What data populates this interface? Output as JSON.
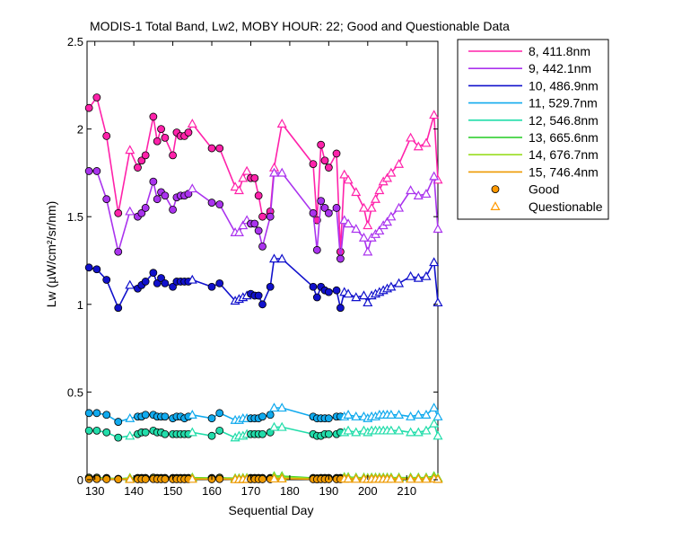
{
  "chart_data": {
    "type": "line",
    "title": "MODIS-1 Total Band,  Lw2, MOBY HOUR: 22;  Good and Questionable Data",
    "xlabel": "Sequential Day",
    "ylabel": "Lw (µW/cm²/sr/nm)",
    "xlim": [
      128,
      218
    ],
    "ylim": [
      0,
      2.5
    ],
    "xticks": [
      130,
      140,
      150,
      160,
      170,
      180,
      190,
      200,
      210
    ],
    "yticks": [
      0,
      0.5,
      1,
      1.5,
      2,
      2.5
    ],
    "ytick_labels": [
      "0",
      "0.5",
      "1",
      "1.5",
      "2",
      "2.5"
    ],
    "grid": false,
    "legend_position": "outside-right",
    "marker_legend": [
      {
        "label": "Good",
        "marker": "circle",
        "color": "#ff9900"
      },
      {
        "label": "Questionable",
        "marker": "triangle",
        "color": "#ff9900"
      }
    ],
    "x": [
      128.5,
      130.5,
      133,
      136,
      139,
      141,
      142,
      143,
      145,
      146,
      147,
      148,
      150,
      151,
      152,
      153,
      154,
      155,
      160,
      162,
      166,
      167,
      168,
      169,
      170,
      171,
      172,
      173,
      175,
      176,
      178,
      186,
      187,
      188,
      189,
      190,
      192,
      193,
      194,
      195,
      197,
      199,
      200,
      201,
      202,
      203,
      204,
      205,
      206,
      208,
      211,
      213,
      215,
      217,
      218
    ],
    "quality": [
      "G",
      "G",
      "G",
      "G",
      "Q",
      "G",
      "G",
      "G",
      "G",
      "G",
      "G",
      "G",
      "G",
      "G",
      "G",
      "G",
      "G",
      "Q",
      "G",
      "G",
      "Q",
      "Q",
      "Q",
      "Q",
      "G",
      "G",
      "G",
      "G",
      "G",
      "Q",
      "Q",
      "G",
      "G",
      "G",
      "G",
      "G",
      "G",
      "G",
      "Q",
      "Q",
      "Q",
      "Q",
      "Q",
      "Q",
      "Q",
      "Q",
      "Q",
      "Q",
      "Q",
      "Q",
      "Q",
      "Q",
      "Q",
      "Q",
      "Q"
    ],
    "series": [
      {
        "name": "8, 411.8nm",
        "color": "#ff22aa",
        "values": [
          2.12,
          2.18,
          1.96,
          1.52,
          1.88,
          1.78,
          1.82,
          1.85,
          2.07,
          1.93,
          2.0,
          1.95,
          1.85,
          1.98,
          1.96,
          1.96,
          1.98,
          2.03,
          1.89,
          1.89,
          1.67,
          1.65,
          1.72,
          1.76,
          1.72,
          1.72,
          1.62,
          1.5,
          1.53,
          1.78,
          2.03,
          1.8,
          1.48,
          1.91,
          1.82,
          1.78,
          1.86,
          1.3,
          1.74,
          1.71,
          1.64,
          1.55,
          1.45,
          1.55,
          1.6,
          1.65,
          1.7,
          1.72,
          1.75,
          1.8,
          1.95,
          1.9,
          1.92,
          2.08,
          1.71
        ]
      },
      {
        "name": "9, 442.1nm",
        "color": "#aa33ee",
        "values": [
          1.76,
          1.76,
          1.6,
          1.3,
          1.53,
          1.5,
          1.52,
          1.55,
          1.7,
          1.6,
          1.64,
          1.62,
          1.54,
          1.61,
          1.62,
          1.62,
          1.63,
          1.66,
          1.58,
          1.57,
          1.41,
          1.41,
          1.45,
          1.48,
          1.46,
          1.46,
          1.42,
          1.33,
          1.5,
          1.75,
          1.75,
          1.52,
          1.31,
          1.59,
          1.55,
          1.52,
          1.55,
          1.26,
          1.48,
          1.46,
          1.43,
          1.38,
          1.3,
          1.38,
          1.4,
          1.42,
          1.45,
          1.47,
          1.5,
          1.55,
          1.65,
          1.62,
          1.63,
          1.73,
          1.43
        ]
      },
      {
        "name": "10, 486.9nm",
        "color": "#1111cc",
        "values": [
          1.21,
          1.2,
          1.14,
          0.98,
          1.11,
          1.09,
          1.11,
          1.13,
          1.18,
          1.12,
          1.15,
          1.12,
          1.1,
          1.13,
          1.13,
          1.13,
          1.13,
          1.14,
          1.1,
          1.12,
          1.02,
          1.03,
          1.04,
          1.05,
          1.06,
          1.05,
          1.05,
          1.0,
          1.1,
          1.26,
          1.26,
          1.1,
          1.04,
          1.1,
          1.08,
          1.07,
          1.08,
          0.98,
          1.07,
          1.06,
          1.04,
          1.05,
          1.01,
          1.05,
          1.06,
          1.07,
          1.08,
          1.09,
          1.1,
          1.12,
          1.16,
          1.15,
          1.16,
          1.24,
          1.01
        ]
      },
      {
        "name": "11, 529.7nm",
        "color": "#11aaee",
        "values": [
          0.38,
          0.38,
          0.37,
          0.33,
          0.35,
          0.36,
          0.36,
          0.37,
          0.37,
          0.36,
          0.36,
          0.36,
          0.35,
          0.36,
          0.36,
          0.35,
          0.36,
          0.37,
          0.35,
          0.38,
          0.34,
          0.34,
          0.35,
          0.35,
          0.35,
          0.35,
          0.35,
          0.36,
          0.37,
          0.41,
          0.41,
          0.36,
          0.35,
          0.35,
          0.35,
          0.35,
          0.36,
          0.36,
          0.36,
          0.37,
          0.36,
          0.36,
          0.35,
          0.36,
          0.36,
          0.37,
          0.37,
          0.37,
          0.37,
          0.37,
          0.36,
          0.37,
          0.37,
          0.41,
          0.36
        ]
      },
      {
        "name": "12, 546.8nm",
        "color": "#22ddaa",
        "values": [
          0.28,
          0.28,
          0.27,
          0.24,
          0.25,
          0.26,
          0.27,
          0.27,
          0.28,
          0.27,
          0.27,
          0.26,
          0.26,
          0.26,
          0.26,
          0.26,
          0.26,
          0.27,
          0.25,
          0.28,
          0.24,
          0.25,
          0.25,
          0.26,
          0.26,
          0.26,
          0.26,
          0.26,
          0.27,
          0.3,
          0.3,
          0.26,
          0.25,
          0.25,
          0.26,
          0.26,
          0.26,
          0.27,
          0.27,
          0.28,
          0.27,
          0.28,
          0.27,
          0.28,
          0.28,
          0.28,
          0.28,
          0.28,
          0.28,
          0.28,
          0.27,
          0.27,
          0.28,
          0.32,
          0.25
        ]
      },
      {
        "name": "13, 665.6nm",
        "color": "#22cc22",
        "values": [
          0.012,
          0.012,
          0.01,
          0.005,
          0.01,
          0.01,
          0.01,
          0.01,
          0.012,
          0.01,
          0.01,
          0.01,
          0.01,
          0.01,
          0.01,
          0.01,
          0.01,
          0.012,
          0.01,
          0.012,
          0.008,
          0.008,
          0.01,
          0.01,
          0.01,
          0.01,
          0.01,
          0.01,
          0.01,
          0.02,
          0.02,
          0.01,
          0.008,
          0.01,
          0.01,
          0.01,
          0.01,
          0.01,
          0.015,
          0.015,
          0.012,
          0.012,
          0.01,
          0.012,
          0.012,
          0.012,
          0.012,
          0.012,
          0.012,
          0.012,
          0.012,
          0.012,
          0.012,
          0.02,
          0.01
        ]
      },
      {
        "name": "14, 676.7nm",
        "color": "#99dd22",
        "values": [
          0.01,
          0.01,
          0.008,
          0.004,
          0.008,
          0.008,
          0.008,
          0.008,
          0.01,
          0.008,
          0.008,
          0.008,
          0.008,
          0.008,
          0.008,
          0.008,
          0.008,
          0.01,
          0.008,
          0.01,
          0.006,
          0.006,
          0.008,
          0.008,
          0.008,
          0.008,
          0.008,
          0.008,
          0.008,
          0.016,
          0.016,
          0.008,
          0.006,
          0.008,
          0.008,
          0.008,
          0.008,
          0.008,
          0.012,
          0.012,
          0.01,
          0.01,
          0.008,
          0.01,
          0.01,
          0.01,
          0.01,
          0.01,
          0.01,
          0.01,
          0.01,
          0.01,
          0.01,
          0.016,
          0.008
        ]
      },
      {
        "name": "15, 746.4nm",
        "color": "#ee9900",
        "values": [
          0.004,
          0.004,
          0.003,
          0.002,
          0.003,
          0.003,
          0.003,
          0.003,
          0.004,
          0.003,
          0.003,
          0.003,
          0.003,
          0.003,
          0.003,
          0.003,
          0.003,
          0.004,
          0.003,
          0.004,
          0.002,
          0.002,
          0.003,
          0.003,
          0.003,
          0.003,
          0.003,
          0.003,
          0.003,
          0.006,
          0.006,
          0.003,
          0.002,
          0.003,
          0.003,
          0.003,
          0.003,
          0.003,
          0.005,
          0.005,
          0.004,
          0.004,
          0.003,
          0.004,
          0.004,
          0.004,
          0.004,
          0.004,
          0.004,
          0.004,
          0.004,
          0.004,
          0.004,
          0.006,
          0.003
        ]
      }
    ]
  }
}
